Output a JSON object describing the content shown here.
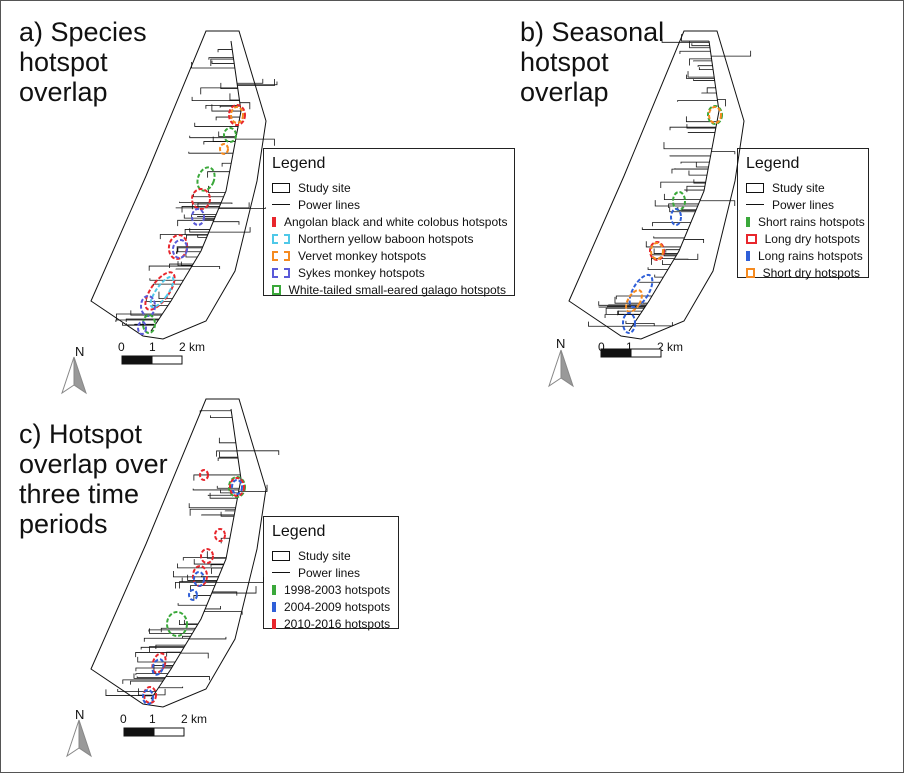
{
  "panels": [
    {
      "title": "a) Species\nhotspot\noverlap",
      "legend": {
        "title": "Legend",
        "items": [
          {
            "label": "Study site",
            "style": "box",
            "color": "#111111"
          },
          {
            "label": "Power lines",
            "style": "line",
            "color": "#111111"
          },
          {
            "label": "Angolan black and white colobus hotspots",
            "style": "dashed",
            "color": "#e8262c"
          },
          {
            "label": "Northern yellow baboon hotspots",
            "style": "dashed",
            "color": "#4fc8e8"
          },
          {
            "label": "Vervet monkey hotspots",
            "style": "dashed",
            "color": "#f58a1f"
          },
          {
            "label": "Sykes monkey hotspots",
            "style": "dashed",
            "color": "#5a5ad8"
          },
          {
            "label": "White-tailed small-eared galago hotspots",
            "style": "dashed",
            "color": "#3aa83a"
          }
        ]
      },
      "scale": {
        "labels": [
          "0",
          "1",
          "2 km"
        ]
      },
      "north": "N"
    },
    {
      "title": "b) Seasonal\nhotspot\noverlap",
      "legend": {
        "title": "Legend",
        "items": [
          {
            "label": "Study site",
            "style": "box",
            "color": "#111111"
          },
          {
            "label": "Power lines",
            "style": "line",
            "color": "#111111"
          },
          {
            "label": "Short rains hotspots",
            "style": "dashed",
            "color": "#3aa83a"
          },
          {
            "label": "Long dry hotspots",
            "style": "dashed",
            "color": "#e8262c"
          },
          {
            "label": "Long rains hotspots",
            "style": "dashed",
            "color": "#2f5fd8"
          },
          {
            "label": "Short dry hotspots",
            "style": "dashed",
            "color": "#f58a1f"
          }
        ]
      },
      "scale": {
        "labels": [
          "0",
          "1",
          "2 km"
        ]
      },
      "north": "N"
    },
    {
      "title": "c) Hotspot\noverlap over\nthree time\nperiods",
      "legend": {
        "title": "Legend",
        "items": [
          {
            "label": "Study site",
            "style": "box",
            "color": "#111111"
          },
          {
            "label": "Power lines",
            "style": "line",
            "color": "#111111"
          },
          {
            "label": "1998-2003 hotspots",
            "style": "dashed",
            "color": "#3aa83a"
          },
          {
            "label": "2004-2009 hotspots",
            "style": "dashed",
            "color": "#2f5fd8"
          },
          {
            "label": "2010-2016 hotspots",
            "style": "dashed",
            "color": "#e8262c"
          }
        ]
      },
      "scale": {
        "labels": [
          "0",
          "1",
          "2 km"
        ]
      },
      "north": "N"
    }
  ]
}
